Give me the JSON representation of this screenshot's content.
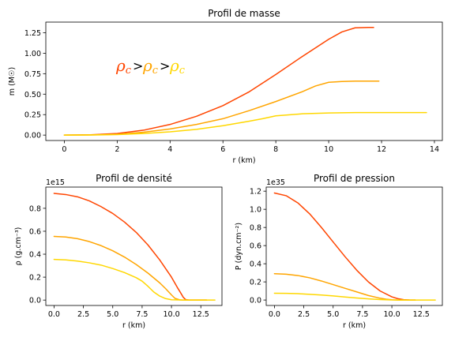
{
  "colors": {
    "high": "#ff4500",
    "mid": "#ffa500",
    "low": "#ffd700"
  },
  "annotation": {
    "symbol": "ρ",
    "sub": "c",
    "op": ">"
  },
  "chart_data": [
    {
      "id": "masse",
      "type": "line",
      "title": "Profil de masse",
      "xlabel": "r (km)",
      "ylabel": "m (M☉)",
      "xlim": [
        -0.7,
        14.3
      ],
      "ylim": [
        -0.066,
        1.38
      ],
      "xticks": [
        0,
        2,
        4,
        6,
        8,
        10,
        12,
        14
      ],
      "yticks": [
        0.0,
        0.25,
        0.5,
        0.75,
        1.0,
        1.25
      ],
      "ytick_labels": [
        "0.00",
        "0.25",
        "0.50",
        "0.75",
        "1.00",
        "1.25"
      ],
      "offset_text": "",
      "series": [
        {
          "color": "high",
          "x": [
            0,
            1,
            2,
            3,
            4,
            5,
            6,
            7,
            8,
            9,
            10,
            10.5,
            11,
            11.5,
            11.7
          ],
          "y": [
            0,
            0.004,
            0.02,
            0.06,
            0.13,
            0.23,
            0.36,
            0.53,
            0.74,
            0.96,
            1.17,
            1.26,
            1.31,
            1.315,
            1.315
          ]
        },
        {
          "color": "mid",
          "x": [
            0,
            1,
            2,
            3,
            4,
            5,
            6,
            7,
            8,
            9,
            9.5,
            10,
            10.5,
            11,
            11.9
          ],
          "y": [
            0,
            0.002,
            0.01,
            0.035,
            0.075,
            0.13,
            0.2,
            0.3,
            0.41,
            0.53,
            0.6,
            0.645,
            0.655,
            0.66,
            0.66
          ]
        },
        {
          "color": "low",
          "x": [
            0,
            1,
            2,
            3,
            4,
            5,
            6,
            7,
            7.5,
            8,
            9,
            10,
            11,
            12,
            13.7
          ],
          "y": [
            0,
            0.001,
            0.006,
            0.02,
            0.04,
            0.07,
            0.115,
            0.17,
            0.2,
            0.235,
            0.26,
            0.27,
            0.275,
            0.275,
            0.275
          ]
        }
      ]
    },
    {
      "id": "densite",
      "type": "line",
      "title": "Profil de densité",
      "xlabel": "r (km)",
      "ylabel": "ρ (g.cm⁻³)",
      "xlim": [
        -0.7,
        14.3
      ],
      "ylim": [
        -47000000000000.0,
        985000000000000.0
      ],
      "xticks": [
        0,
        2.5,
        5,
        7.5,
        10,
        12.5
      ],
      "xtick_labels": [
        "0.0",
        "2.5",
        "5.0",
        "7.5",
        "10.0",
        "12.5"
      ],
      "yticks": [
        0,
        200000000000000.0,
        400000000000000.0,
        600000000000000.0,
        800000000000000.0
      ],
      "ytick_labels": [
        "0.0",
        "0.2",
        "0.4",
        "0.6",
        "0.8"
      ],
      "offset_text": "1e15",
      "series": [
        {
          "color": "high",
          "x": [
            0,
            1,
            2,
            3,
            4,
            5,
            6,
            7,
            8,
            9,
            10,
            10.5,
            10.8,
            11,
            11.2,
            11.5,
            12,
            13
          ],
          "y": [
            930000000000000.0,
            920000000000000.0,
            900000000000000.0,
            865000000000000.0,
            815000000000000.0,
            755000000000000.0,
            680000000000000.0,
            590000000000000.0,
            480000000000000.0,
            350000000000000.0,
            200000000000000.0,
            110000000000000.0,
            60000000000000.0,
            25000000000000.0,
            5000000000000.0,
            0,
            0,
            0
          ]
        },
        {
          "color": "mid",
          "x": [
            0,
            1,
            2,
            3,
            4,
            5,
            6,
            7,
            8,
            9,
            9.5,
            10,
            10.3,
            10.7,
            11,
            12,
            13
          ],
          "y": [
            555000000000000.0,
            550000000000000.0,
            535000000000000.0,
            510000000000000.0,
            475000000000000.0,
            430000000000000.0,
            375000000000000.0,
            310000000000000.0,
            235000000000000.0,
            150000000000000.0,
            100000000000000.0,
            45000000000000.0,
            15000000000000.0,
            2000000000000.0,
            0,
            0,
            0
          ]
        },
        {
          "color": "low",
          "x": [
            0,
            1,
            2,
            3,
            4,
            5,
            6,
            7,
            7.5,
            8,
            8.5,
            9,
            9.5,
            10,
            11,
            12,
            13.7
          ],
          "y": [
            355000000000000.0,
            350000000000000.0,
            340000000000000.0,
            325000000000000.0,
            305000000000000.0,
            275000000000000.0,
            240000000000000.0,
            195000000000000.0,
            165000000000000.0,
            120000000000000.0,
            70000000000000.0,
            35000000000000.0,
            13000000000000.0,
            3000000000000.0,
            0,
            0,
            0
          ]
        }
      ]
    },
    {
      "id": "pression",
      "type": "line",
      "title": "Profil de pression",
      "xlabel": "r (km)",
      "ylabel": "P (dyn.cm⁻²)",
      "xlim": [
        -0.7,
        14.3
      ],
      "ylim": [
        -6e+33,
        1.245e+35
      ],
      "xticks": [
        0,
        2.5,
        5,
        7.5,
        10,
        12.5
      ],
      "xtick_labels": [
        "0.0",
        "2.5",
        "5.0",
        "7.5",
        "10.0",
        "12.5"
      ],
      "yticks": [
        0,
        2e+34,
        4e+34,
        6e+34,
        8e+34,
        1e+35,
        1.2e+35
      ],
      "ytick_labels": [
        "0.0",
        "0.2",
        "0.4",
        "0.6",
        "0.8",
        "1.0",
        "1.2"
      ],
      "offset_text": "1e35",
      "series": [
        {
          "color": "high",
          "x": [
            0,
            1,
            2,
            3,
            4,
            5,
            6,
            7,
            8,
            9,
            10,
            10.5,
            11,
            11.5,
            12
          ],
          "y": [
            1.18e+35,
            1.15e+35,
            1.07e+35,
            9.5e+34,
            8e+34,
            6.4e+34,
            4.8e+34,
            3.3e+34,
            2e+34,
            1e+34,
            3.5e+33,
            1.5e+33,
            4e+32,
            1e+32,
            0
          ]
        },
        {
          "color": "mid",
          "x": [
            0,
            1,
            2,
            3,
            4,
            5,
            6,
            7,
            8,
            9,
            9.5,
            10,
            10.5,
            11,
            12
          ],
          "y": [
            2.9e+34,
            2.85e+34,
            2.7e+34,
            2.45e+34,
            2.1e+34,
            1.7e+34,
            1.3e+34,
            9e+33,
            5e+33,
            2e+33,
            1e+33,
            3e+32,
            0,
            0,
            0
          ]
        },
        {
          "color": "low",
          "x": [
            0,
            1,
            2,
            3,
            4,
            5,
            6,
            7,
            8,
            9,
            10,
            11,
            12,
            13.7
          ],
          "y": [
            7.5e+33,
            7.4e+33,
            7e+33,
            6.3e+33,
            5.5e+33,
            4.5e+33,
            3.4e+33,
            2.3e+33,
            1.3e+33,
            5e+32,
            1e+32,
            0,
            0,
            0
          ]
        }
      ]
    }
  ]
}
